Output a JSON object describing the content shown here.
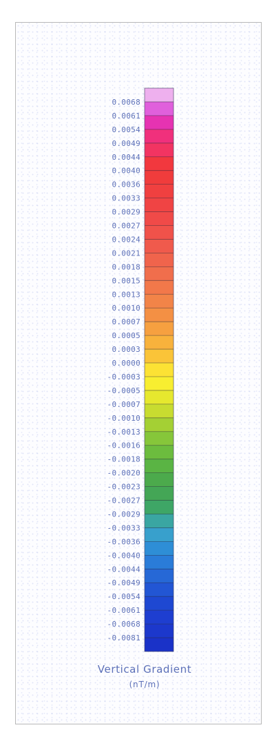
{
  "chart_data": {
    "type": "heatmap",
    "title": "Vertical Gradient",
    "unit": "(nT/m)",
    "tick_labels": [
      "0.0068",
      "0.0061",
      "0.0054",
      "0.0049",
      "0.0044",
      "0.0040",
      "0.0036",
      "0.0033",
      "0.0029",
      "0.0027",
      "0.0024",
      "0.0021",
      "0.0018",
      "0.0015",
      "0.0013",
      "0.0010",
      "0.0007",
      "0.0005",
      "0.0003",
      "0.0000",
      "-0.0003",
      "-0.0005",
      "-0.0007",
      "-0.0010",
      "-0.0013",
      "-0.0016",
      "-0.0018",
      "-0.0020",
      "-0.0023",
      "-0.0027",
      "-0.0029",
      "-0.0033",
      "-0.0036",
      "-0.0040",
      "-0.0044",
      "-0.0049",
      "-0.0054",
      "-0.0061",
      "-0.0068",
      "-0.0081"
    ],
    "colors": [
      "#eeb0ee",
      "#e060dc",
      "#e633b2",
      "#f0307c",
      "#f23462",
      "#f2383e",
      "#f03c3c",
      "#f04040",
      "#f04444",
      "#f04a48",
      "#f0524a",
      "#f05a4c",
      "#f0644c",
      "#f06e4c",
      "#f2784a",
      "#f28448",
      "#f49044",
      "#f6a040",
      "#f8b23c",
      "#fac438",
      "#fce234",
      "#f8ee30",
      "#e6e82e",
      "#c8dc30",
      "#a4d034",
      "#86c63a",
      "#6cbc3e",
      "#5ab444",
      "#4caa4c",
      "#44a656",
      "#3ea666",
      "#3aa6a2",
      "#38a0cc",
      "#2e8ed6",
      "#2a7cd8",
      "#2668d6",
      "#2256d4",
      "#1e48d2",
      "#1e3ed0",
      "#1c38cc",
      "#1a32c8"
    ]
  }
}
